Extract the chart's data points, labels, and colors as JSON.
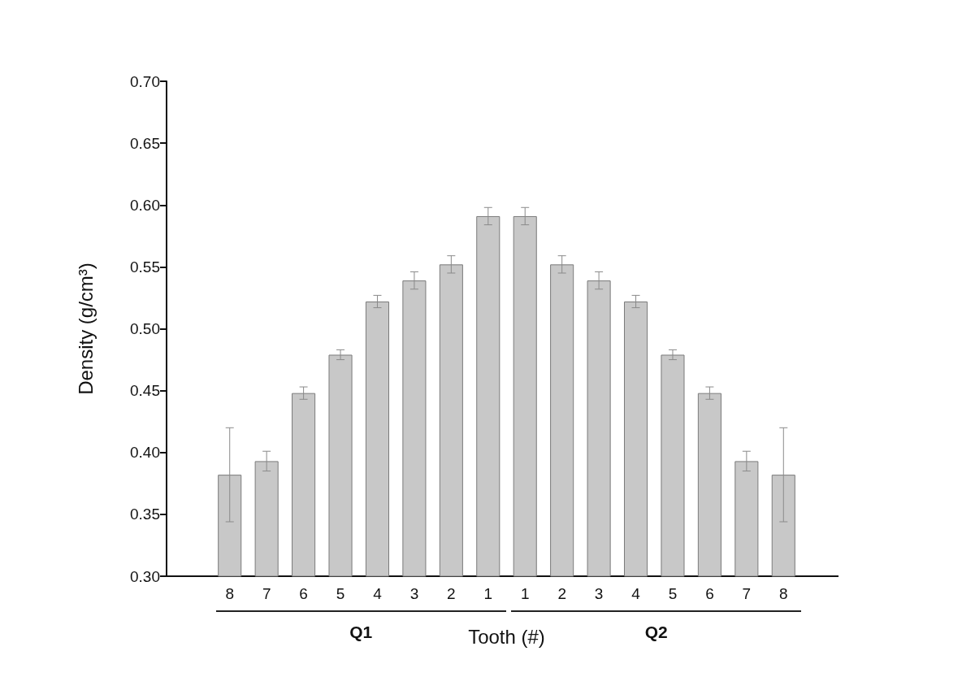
{
  "chart_data": {
    "type": "bar",
    "xlabel": "Tooth (#)",
    "ylabel": "Density (g/cm³)",
    "categories": [
      "8",
      "7",
      "6",
      "5",
      "4",
      "3",
      "2",
      "1",
      "1",
      "2",
      "3",
      "4",
      "5",
      "6",
      "7",
      "8"
    ],
    "values": [
      0.382,
      0.393,
      0.448,
      0.479,
      0.522,
      0.539,
      0.552,
      0.591,
      0.591,
      0.552,
      0.539,
      0.522,
      0.479,
      0.448,
      0.393,
      0.382
    ],
    "errors": [
      0.038,
      0.008,
      0.005,
      0.004,
      0.005,
      0.007,
      0.007,
      0.007,
      0.007,
      0.007,
      0.007,
      0.005,
      0.004,
      0.005,
      0.008,
      0.038
    ],
    "color": "#c8c8c8",
    "ylim": [
      0.3,
      0.7
    ],
    "yticks": [
      {
        "value": 0.3,
        "label": "0.30"
      },
      0.35,
      {
        "value": 0.4,
        "label": "0.40"
      },
      0.45,
      {
        "value": 0.5,
        "label": "0.50"
      },
      0.55,
      {
        "value": 0.6,
        "label": "0.60"
      },
      0.65,
      {
        "value": 0.7,
        "label": "0.70"
      }
    ],
    "annotations": [
      "Q1",
      "Q2"
    ]
  }
}
